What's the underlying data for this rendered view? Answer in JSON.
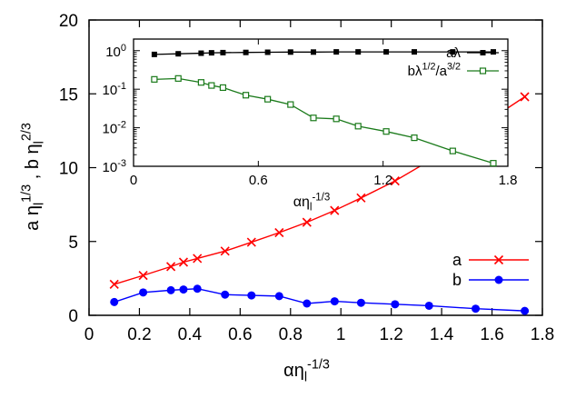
{
  "chart_data": [
    {
      "type": "line",
      "xlabel": "αη_l^{-1/3}",
      "ylabel": "a η_l^{1/3} , b η_l^{2/3}",
      "xlim": [
        0,
        1.8
      ],
      "ylim": [
        0,
        20
      ],
      "xticks": [
        0,
        0.2,
        0.4,
        0.6,
        0.8,
        1,
        1.2,
        1.4,
        1.6,
        1.8
      ],
      "yticks": [
        0,
        5,
        10,
        15,
        20
      ],
      "xtick_labels": [
        "0",
        "0.2",
        "0.4",
        "0.6",
        "0.8",
        "1",
        "1.2",
        "1.4",
        "1.6",
        "1.8"
      ],
      "ytick_labels": [
        "0",
        "5",
        "10",
        "15",
        "20"
      ],
      "grid": false,
      "legend": "bottom-right",
      "series": [
        {
          "name": "a",
          "marker": "x",
          "color": "#ff0000",
          "x": [
            0.1,
            0.215,
            0.325,
            0.375,
            0.43,
            0.54,
            0.645,
            0.755,
            0.865,
            0.975,
            1.08,
            1.215,
            1.35,
            1.535,
            1.73
          ],
          "y": [
            2.1,
            2.7,
            3.3,
            3.6,
            3.85,
            4.35,
            4.95,
            5.6,
            6.3,
            7.1,
            7.95,
            9.1,
            10.45,
            12.6,
            14.8
          ]
        },
        {
          "name": "b",
          "marker": "filled-circle",
          "color": "#0000ff",
          "x": [
            0.1,
            0.215,
            0.325,
            0.375,
            0.43,
            0.54,
            0.645,
            0.755,
            0.865,
            0.975,
            1.08,
            1.215,
            1.35,
            1.535,
            1.73
          ],
          "y": [
            0.9,
            1.55,
            1.7,
            1.75,
            1.8,
            1.4,
            1.35,
            1.3,
            0.8,
            0.95,
            0.85,
            0.75,
            0.65,
            0.45,
            0.3
          ]
        }
      ]
    },
    {
      "type": "line",
      "inset": true,
      "xlabel": "αη_l^{-1/3}",
      "ylabel": "",
      "xlim": [
        0,
        1.8
      ],
      "ylim": [
        0.001,
        2
      ],
      "yscale": "log",
      "xticks": [
        0,
        0.6,
        1.2,
        1.8
      ],
      "xtick_labels": [
        "0",
        "0.6",
        "1.2",
        "1.8"
      ],
      "yticks": [
        0.001,
        0.01,
        0.1,
        1
      ],
      "ytick_labels": [
        {
          "base": "10",
          "exp": "-3"
        },
        {
          "base": "10",
          "exp": "-2"
        },
        {
          "base": "10",
          "exp": "-1"
        },
        {
          "base": "10",
          "exp": "0"
        }
      ],
      "grid": false,
      "legend": "top-right",
      "series": [
        {
          "name": "aλ",
          "marker": "filled-square",
          "color": "#000000",
          "x": [
            0.1,
            0.215,
            0.325,
            0.375,
            0.43,
            0.54,
            0.645,
            0.755,
            0.865,
            0.975,
            1.08,
            1.215,
            1.35,
            1.535,
            1.73
          ],
          "y": [
            0.8,
            0.83,
            0.86,
            0.88,
            0.89,
            0.9,
            0.91,
            0.92,
            0.92,
            0.93,
            0.93,
            0.93,
            0.93,
            0.93,
            0.93
          ]
        },
        {
          "name": "bλ^{1/2}/a^{3/2}",
          "marker": "open-square",
          "color": "#1a7a1a",
          "x": [
            0.1,
            0.215,
            0.325,
            0.375,
            0.43,
            0.54,
            0.645,
            0.755,
            0.865,
            0.975,
            1.08,
            1.215,
            1.35,
            1.535,
            1.73
          ],
          "y": [
            0.18,
            0.19,
            0.15,
            0.125,
            0.11,
            0.07,
            0.055,
            0.04,
            0.018,
            0.017,
            0.011,
            0.008,
            0.0055,
            0.0025,
            0.0012
          ]
        }
      ]
    }
  ]
}
